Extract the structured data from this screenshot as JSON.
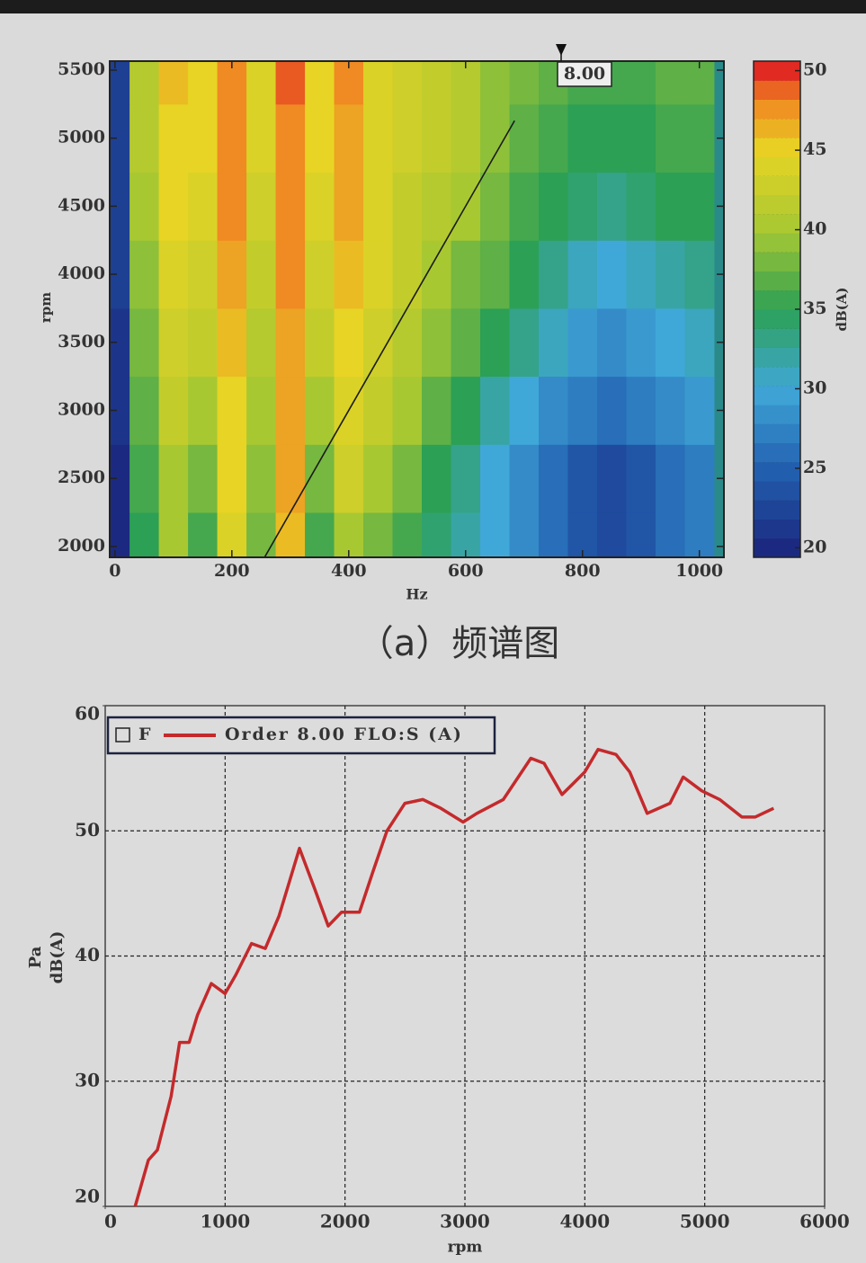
{
  "caption": "（a）频谱图",
  "chart_data": [
    {
      "type": "heatmap",
      "xlabel": "Hz",
      "ylabel": "rpm",
      "colorbar_label": "dB(A)",
      "cursor": {
        "value": 8,
        "label": "8.00"
      },
      "x": [
        0,
        50,
        100,
        150,
        200,
        250,
        300,
        350,
        400,
        450,
        500,
        550,
        600,
        650,
        700,
        750,
        800,
        850,
        900,
        950,
        1000
      ],
      "y": [
        2000,
        2500,
        3000,
        3500,
        4000,
        4500,
        5000,
        5500
      ],
      "z": [
        [
          20,
          35,
          40,
          36,
          44,
          38,
          46,
          36,
          40,
          38,
          36,
          34,
          32,
          30,
          28,
          26,
          24,
          23,
          24,
          26,
          27
        ],
        [
          20,
          36,
          40,
          38,
          45,
          39,
          47,
          38,
          43,
          40,
          38,
          35,
          33,
          30,
          28,
          26,
          24,
          23,
          24,
          26,
          27
        ],
        [
          21,
          37,
          42,
          40,
          45,
          40,
          47,
          40,
          44,
          42,
          40,
          37,
          35,
          32,
          30,
          28,
          27,
          26,
          27,
          28,
          29
        ],
        [
          21,
          38,
          43,
          42,
          46,
          41,
          47,
          42,
          45,
          43,
          41,
          39,
          37,
          35,
          33,
          31,
          29,
          28,
          29,
          30,
          31
        ],
        [
          22,
          39,
          44,
          43,
          47,
          42,
          48,
          43,
          46,
          44,
          42,
          40,
          38,
          37,
          35,
          33,
          31,
          30,
          31,
          32,
          33
        ],
        [
          22,
          40,
          45,
          44,
          48,
          43,
          48,
          44,
          47,
          44,
          42,
          41,
          40,
          38,
          36,
          35,
          34,
          33,
          34,
          35,
          35
        ],
        [
          22,
          41,
          45,
          45,
          48,
          44,
          48,
          45,
          47,
          44,
          43,
          42,
          41,
          39,
          37,
          36,
          35,
          35,
          35,
          36,
          36
        ],
        [
          22,
          41,
          46,
          45,
          48,
          44,
          49,
          45,
          48,
          44,
          43,
          42,
          41,
          39,
          38,
          37,
          36,
          36,
          36,
          37,
          37
        ]
      ],
      "colorscale": [
        [
          20,
          "#1b2a80"
        ],
        [
          25,
          "#2260b0"
        ],
        [
          30,
          "#40a8d8"
        ],
        [
          35,
          "#2ca055"
        ],
        [
          40,
          "#a8c832"
        ],
        [
          45,
          "#e8d424"
        ],
        [
          48,
          "#f08a22"
        ],
        [
          50,
          "#e02a22"
        ]
      ],
      "xlim": [
        -9,
        1042
      ],
      "xticks": [
        0,
        200,
        400,
        600,
        800,
        1000
      ],
      "ylim": [
        1920,
        5566
      ],
      "yticks": [
        2000,
        2500,
        3000,
        3500,
        4000,
        4500,
        5000,
        5500
      ],
      "clim": [
        19.4,
        50.6
      ],
      "cticks": [
        20,
        25,
        30,
        35,
        40,
        45,
        50
      ]
    },
    {
      "type": "line",
      "xlabel": "rpm",
      "ylabel": [
        "Pa",
        "dB(A)"
      ],
      "legend_box": "F",
      "series": [
        {
          "name": "Order 8.00 FLO:S (A)",
          "color": "#c42a2c",
          "x": [
            250,
            360,
            435,
            550,
            620,
            700,
            770,
            885,
            1000,
            1090,
            1220,
            1335,
            1450,
            1620,
            1750,
            1860,
            1970,
            2120,
            2235,
            2350,
            2500,
            2650,
            2800,
            2985,
            3100,
            3320,
            3550,
            3660,
            3810,
            4000,
            4110,
            4260,
            4375,
            4520,
            4710,
            4820,
            4975,
            5125,
            5310,
            5420,
            5575
          ],
          "values": [
            20,
            23.7,
            24.5,
            28.8,
            33.1,
            33.1,
            35.3,
            37.8,
            37,
            38.5,
            41,
            40.6,
            43.2,
            48.6,
            45.3,
            42.4,
            43.5,
            43.5,
            46.8,
            50,
            52.2,
            52.5,
            51.8,
            50.7,
            51.4,
            52.5,
            55.8,
            55.4,
            52.9,
            54.7,
            56.5,
            56.1,
            54.7,
            51.4,
            52.2,
            54.3,
            53.2,
            52.5,
            51.1,
            51.1,
            51.8
          ]
        }
      ],
      "xlim": [
        0,
        6000
      ],
      "xticks": [
        0,
        1000,
        2000,
        3000,
        4000,
        5000,
        6000
      ],
      "ylim": [
        20,
        60
      ],
      "yticks": [
        20,
        30,
        40,
        50,
        60
      ],
      "grid": true
    }
  ]
}
